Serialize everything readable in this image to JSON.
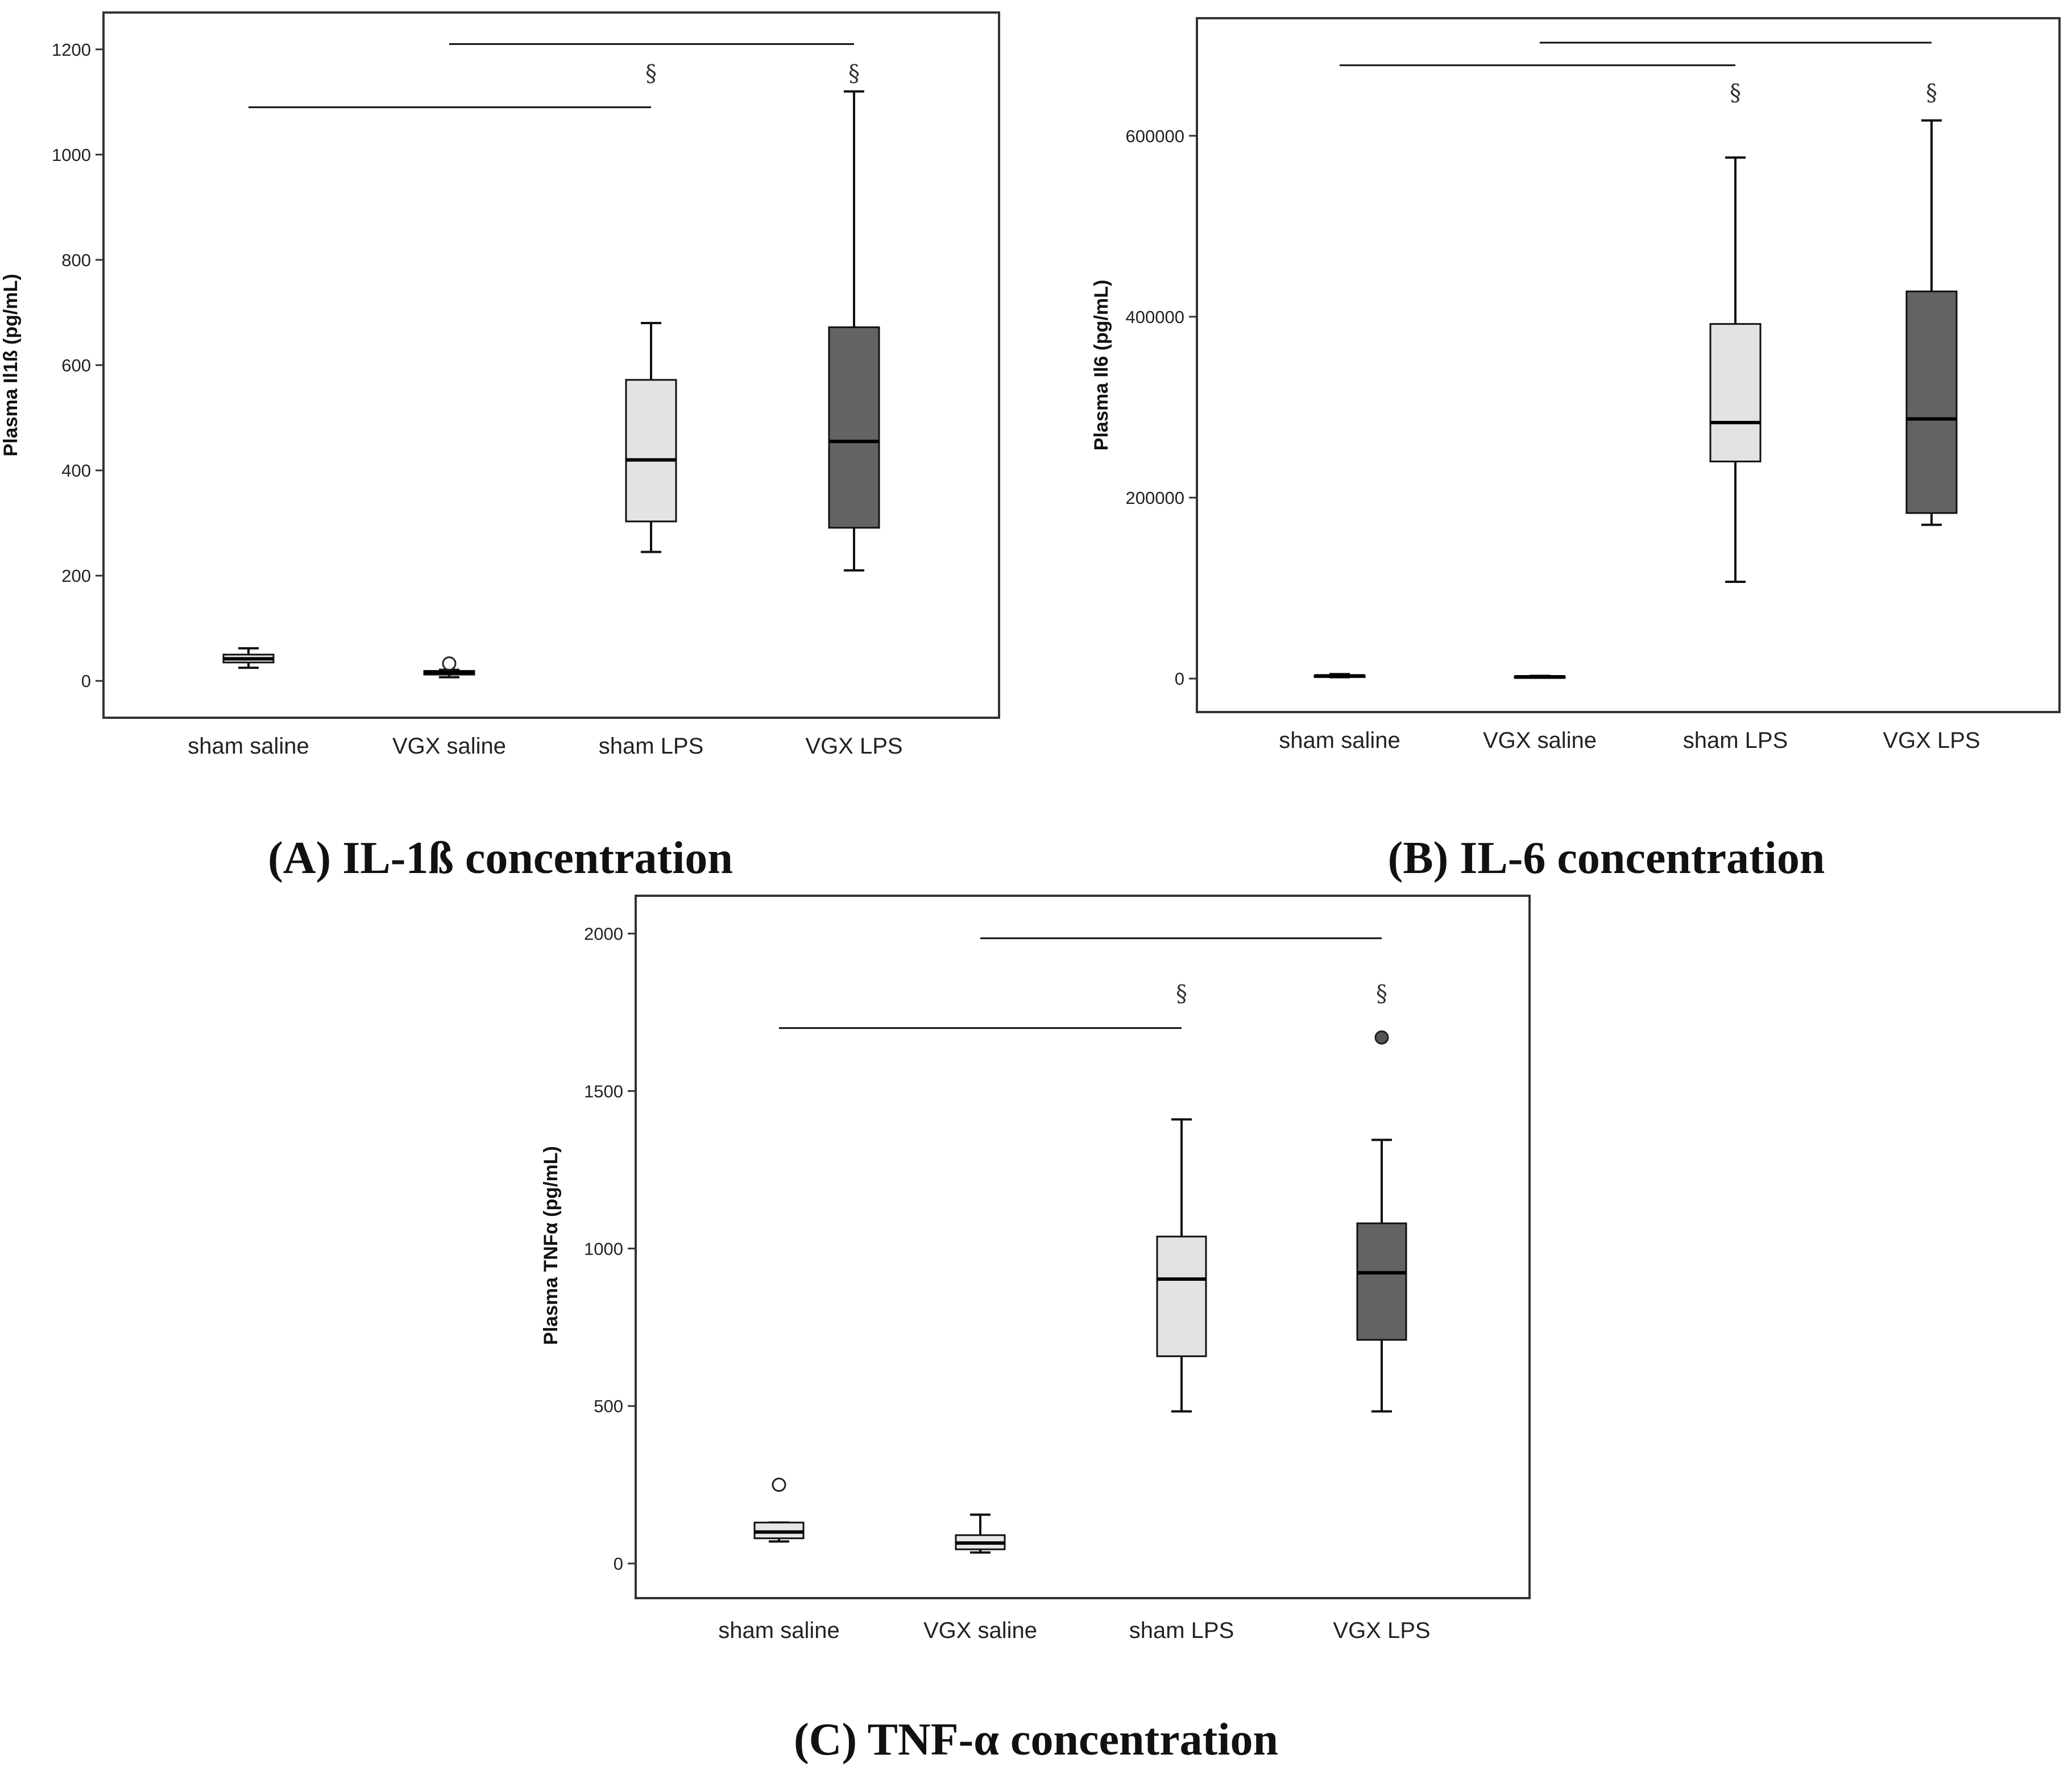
{
  "chart_data": [
    {
      "type": "box",
      "id": "A",
      "caption": {
        "letter": "(A)",
        "text": "IL-1ß concentration"
      },
      "ylabel": "Plasma Il1ß (pg/mL)",
      "ylim": [
        -70,
        1270
      ],
      "yticks": [
        "0",
        "200",
        "400",
        "600",
        "800",
        "1000",
        "1200"
      ],
      "categories": [
        "sham saline",
        "VGX saline",
        "sham LPS",
        "VGX LPS"
      ],
      "boxes": [
        {
          "whisker_low": 25,
          "q1": 35,
          "median": 42,
          "q3": 50,
          "whisker_high": 62,
          "fill": "#e6e6e6",
          "outliers": []
        },
        {
          "whisker_low": 7,
          "q1": 12,
          "median": 16,
          "q3": 19,
          "whisker_high": 21,
          "fill": "#e6e6e6",
          "outliers": [
            {
              "value": 33,
              "style": "open"
            }
          ]
        },
        {
          "whisker_low": 245,
          "q1": 303,
          "median": 420,
          "q3": 572,
          "whisker_high": 680,
          "fill": "#e3e3e3",
          "outliers": []
        },
        {
          "whisker_low": 210,
          "q1": 291,
          "median": 455,
          "q3": 672,
          "whisker_high": 1120,
          "fill": "#636363",
          "outliers": []
        }
      ],
      "brackets": [
        {
          "from": 0,
          "to": 2,
          "value": 1090
        },
        {
          "from": 1,
          "to": 3,
          "value": 1210
        }
      ],
      "significance": [
        {
          "category": 2,
          "symbol": "§",
          "value": 1155
        },
        {
          "category": 3,
          "symbol": "§",
          "value": 1155
        }
      ]
    },
    {
      "type": "box",
      "id": "B",
      "caption": {
        "letter": "(B)",
        "text": "IL-6 concentration"
      },
      "ylabel": "Plasma Il6 (pg/mL)",
      "ylim": [
        -37000,
        730000
      ],
      "yticks": [
        "0",
        "200000",
        "400000",
        "600000"
      ],
      "categories": [
        "sham saline",
        "VGX saline",
        "sham LPS",
        "VGX LPS"
      ],
      "boxes": [
        {
          "whisker_low": 1500,
          "q1": 2500,
          "median": 3000,
          "q3": 3500,
          "whisker_high": 5000,
          "fill": "#e6e6e6",
          "outliers": []
        },
        {
          "whisker_low": 1000,
          "q1": 1500,
          "median": 2000,
          "q3": 2500,
          "whisker_high": 3000,
          "fill": "#e6e6e6",
          "outliers": []
        },
        {
          "whisker_low": 107000,
          "q1": 240000,
          "median": 283000,
          "q3": 392000,
          "whisker_high": 576000,
          "fill": "#e3e3e3",
          "outliers": []
        },
        {
          "whisker_low": 170000,
          "q1": 183000,
          "median": 287000,
          "q3": 428000,
          "whisker_high": 617000,
          "fill": "#636363",
          "outliers": []
        }
      ],
      "brackets": [
        {
          "from": 0,
          "to": 2,
          "value": 678000
        },
        {
          "from": 1,
          "to": 3,
          "value": 703000
        }
      ],
      "significance": [
        {
          "category": 2,
          "symbol": "§",
          "value": 648000
        },
        {
          "category": 3,
          "symbol": "§",
          "value": 648000
        }
      ]
    },
    {
      "type": "box",
      "id": "C",
      "caption": {
        "letter": "(C)",
        "text": "TNF-α concentration"
      },
      "ylabel": "Plasma TNFα (pg/mL)",
      "ylim": [
        -110,
        2120
      ],
      "yticks": [
        "0",
        "500",
        "1000",
        "1500",
        "2000"
      ],
      "categories": [
        "sham saline",
        "VGX saline",
        "sham LPS",
        "VGX LPS"
      ],
      "boxes": [
        {
          "whisker_low": 70,
          "q1": 80,
          "median": 100,
          "q3": 130,
          "whisker_high": 130,
          "fill": "#e6e6e6",
          "outliers": [
            {
              "value": 250,
              "style": "open"
            }
          ]
        },
        {
          "whisker_low": 35,
          "q1": 45,
          "median": 65,
          "q3": 90,
          "whisker_high": 155,
          "fill": "#e6e6e6",
          "outliers": []
        },
        {
          "whisker_low": 483,
          "q1": 658,
          "median": 903,
          "q3": 1038,
          "whisker_high": 1410,
          "fill": "#e3e3e3",
          "outliers": []
        },
        {
          "whisker_low": 483,
          "q1": 710,
          "median": 923,
          "q3": 1080,
          "whisker_high": 1345,
          "fill": "#636363",
          "outliers": [
            {
              "value": 1670,
              "style": "filled"
            }
          ]
        }
      ],
      "brackets": [
        {
          "from": 0,
          "to": 2,
          "value": 1700
        },
        {
          "from": 1,
          "to": 3,
          "value": 1985
        }
      ],
      "significance": [
        {
          "category": 2,
          "symbol": "§",
          "value": 1810
        },
        {
          "category": 3,
          "symbol": "§",
          "value": 1810
        }
      ]
    }
  ]
}
